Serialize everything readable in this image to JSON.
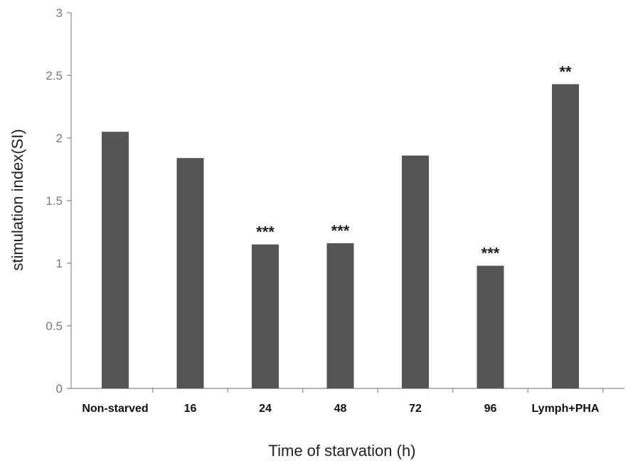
{
  "chart_data": {
    "type": "bar",
    "categories": [
      "Non-starved",
      "16",
      "24",
      "48",
      "72",
      "96",
      "Lymph+PHA"
    ],
    "values": [
      2.05,
      1.84,
      1.15,
      1.16,
      1.86,
      0.98,
      2.43
    ],
    "annotations": [
      "",
      "",
      "***",
      "***",
      "",
      "***",
      "**"
    ],
    "xlabel": "Time of starvation (h)",
    "ylabel": "stimulation index(SI)",
    "ylim": [
      0,
      3
    ],
    "yticks": [
      0,
      0.5,
      1,
      1.5,
      2,
      2.5,
      3
    ],
    "ytick_labels": [
      "0",
      "0.5",
      "1",
      "1.5",
      "2",
      "2.5",
      "3"
    ],
    "grid": false,
    "bar_color": "#555555"
  }
}
